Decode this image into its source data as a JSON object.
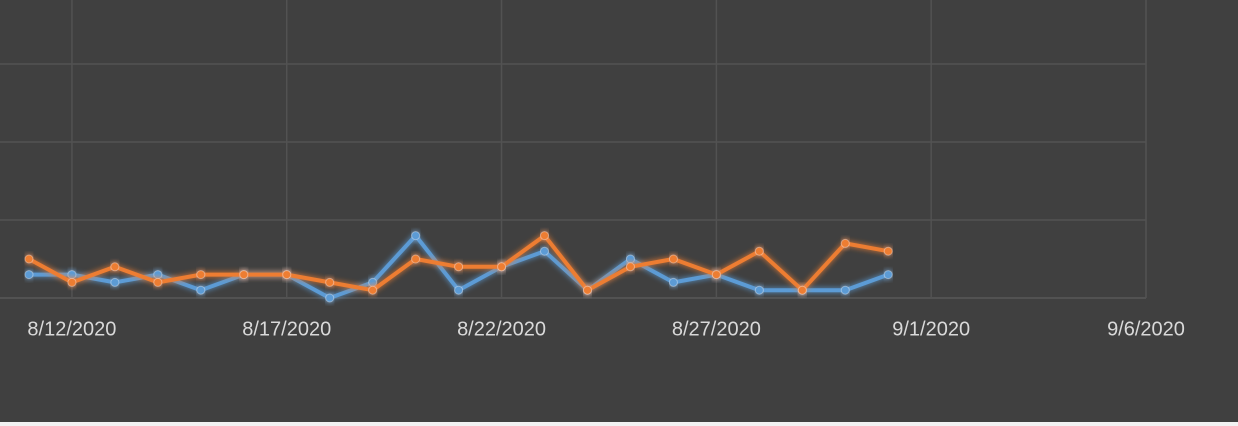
{
  "chart_data": {
    "type": "line",
    "x": [
      "8/11/2020",
      "8/12/2020",
      "8/13/2020",
      "8/14/2020",
      "8/15/2020",
      "8/16/2020",
      "8/17/2020",
      "8/18/2020",
      "8/19/2020",
      "8/20/2020",
      "8/21/2020",
      "8/22/2020",
      "8/23/2020",
      "8/24/2020",
      "8/25/2020",
      "8/26/2020",
      "8/27/2020",
      "8/28/2020",
      "8/29/2020",
      "8/30/2020",
      "8/31/2020"
    ],
    "series": [
      {
        "color": "#5b9bd5",
        "values": [
          3,
          3,
          2,
          3,
          1,
          3,
          3,
          0,
          2,
          8,
          1,
          4,
          6,
          1,
          5,
          2,
          3,
          1,
          1,
          1,
          3
        ]
      },
      {
        "color": "#ed7d31",
        "values": [
          5,
          2,
          4,
          2,
          3,
          3,
          3,
          2,
          1,
          5,
          4,
          4,
          8,
          1,
          4,
          5,
          3,
          6,
          1,
          7,
          6
        ]
      }
    ],
    "xlim": [
      "8/10/2020",
      "9/6/2020"
    ],
    "xticks": [
      "8/12/2020",
      "8/17/2020",
      "8/22/2020",
      "8/27/2020",
      "9/1/2020",
      "9/6/2020"
    ],
    "ylim": [
      0,
      40
    ],
    "yticks": [
      0,
      10,
      20,
      30,
      40
    ],
    "grid": true
  }
}
